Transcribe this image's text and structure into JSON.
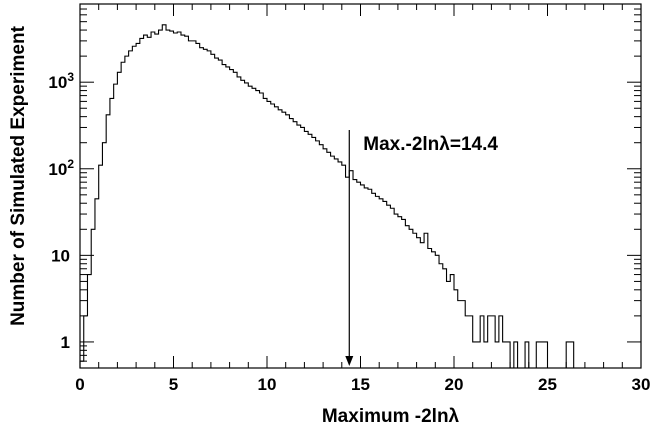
{
  "chart_data": {
    "type": "histogram",
    "title": "",
    "xlabel": "Maximum -2lnλ",
    "ylabel": "Number of Simulated Experiment",
    "xlim": [
      0,
      30
    ],
    "ylim": [
      0.5,
      8000
    ],
    "yscale": "log",
    "bin_width": 0.2,
    "x_ticks": [
      0,
      5,
      10,
      15,
      20,
      25,
      30
    ],
    "x_tick_labels": [
      "0",
      "5",
      "10",
      "15",
      "20",
      "25",
      "30"
    ],
    "y_ticks": [
      1,
      10,
      100,
      1000
    ],
    "y_tick_labels": [
      {
        "base": "1",
        "exp": ""
      },
      {
        "base": "10",
        "exp": ""
      },
      {
        "base": "10",
        "exp": "2"
      },
      {
        "base": "10",
        "exp": "3"
      }
    ],
    "bins": [
      [
        0.0,
        0.6
      ],
      [
        0.2,
        2
      ],
      [
        0.4,
        6
      ],
      [
        0.6,
        20
      ],
      [
        0.8,
        45
      ],
      [
        1.0,
        110
      ],
      [
        1.2,
        200
      ],
      [
        1.4,
        420
      ],
      [
        1.6,
        650
      ],
      [
        1.8,
        950
      ],
      [
        2.0,
        1300
      ],
      [
        2.2,
        1700
      ],
      [
        2.4,
        2000
      ],
      [
        2.6,
        2300
      ],
      [
        2.8,
        2600
      ],
      [
        3.0,
        2800
      ],
      [
        3.2,
        3200
      ],
      [
        3.4,
        3500
      ],
      [
        3.6,
        3300
      ],
      [
        3.8,
        3800
      ],
      [
        4.0,
        3600
      ],
      [
        4.2,
        4000
      ],
      [
        4.4,
        4600
      ],
      [
        4.6,
        4000
      ],
      [
        4.8,
        3900
      ],
      [
        5.0,
        3700
      ],
      [
        5.2,
        3800
      ],
      [
        5.4,
        3500
      ],
      [
        5.6,
        3400
      ],
      [
        5.8,
        3000
      ],
      [
        6.0,
        3000
      ],
      [
        6.2,
        2800
      ],
      [
        6.4,
        2500
      ],
      [
        6.6,
        2400
      ],
      [
        6.8,
        2300
      ],
      [
        7.0,
        2100
      ],
      [
        7.2,
        1900
      ],
      [
        7.4,
        1800
      ],
      [
        7.6,
        1600
      ],
      [
        7.8,
        1500
      ],
      [
        8.0,
        1400
      ],
      [
        8.2,
        1300
      ],
      [
        8.4,
        1150
      ],
      [
        8.6,
        1050
      ],
      [
        8.8,
        980
      ],
      [
        9.0,
        900
      ],
      [
        9.2,
        850
      ],
      [
        9.4,
        800
      ],
      [
        9.6,
        750
      ],
      [
        9.8,
        650
      ],
      [
        10.0,
        600
      ],
      [
        10.2,
        560
      ],
      [
        10.4,
        520
      ],
      [
        10.6,
        480
      ],
      [
        10.8,
        450
      ],
      [
        11.0,
        420
      ],
      [
        11.2,
        380
      ],
      [
        11.4,
        350
      ],
      [
        11.6,
        320
      ],
      [
        11.8,
        300
      ],
      [
        12.0,
        270
      ],
      [
        12.2,
        250
      ],
      [
        12.4,
        230
      ],
      [
        12.6,
        210
      ],
      [
        12.8,
        190
      ],
      [
        13.0,
        170
      ],
      [
        13.2,
        155
      ],
      [
        13.4,
        140
      ],
      [
        13.6,
        130
      ],
      [
        13.8,
        120
      ],
      [
        14.0,
        110
      ],
      [
        14.2,
        80
      ],
      [
        14.4,
        95
      ],
      [
        14.6,
        75
      ],
      [
        14.8,
        70
      ],
      [
        15.0,
        65
      ],
      [
        15.2,
        60
      ],
      [
        15.4,
        58
      ],
      [
        15.6,
        52
      ],
      [
        15.8,
        48
      ],
      [
        16.0,
        45
      ],
      [
        16.2,
        42
      ],
      [
        16.4,
        38
      ],
      [
        16.6,
        35
      ],
      [
        16.8,
        30
      ],
      [
        17.0,
        28
      ],
      [
        17.2,
        26
      ],
      [
        17.4,
        22
      ],
      [
        17.6,
        20
      ],
      [
        17.8,
        18
      ],
      [
        18.0,
        16
      ],
      [
        18.2,
        14
      ],
      [
        18.4,
        18
      ],
      [
        18.6,
        12
      ],
      [
        18.8,
        11
      ],
      [
        19.0,
        10
      ],
      [
        19.2,
        8
      ],
      [
        19.4,
        7
      ],
      [
        19.6,
        5
      ],
      [
        19.8,
        6
      ],
      [
        20.0,
        4
      ],
      [
        20.2,
        3
      ],
      [
        20.4,
        3
      ],
      [
        20.6,
        2
      ],
      [
        20.8,
        2
      ],
      [
        21.0,
        1
      ],
      [
        21.2,
        1
      ],
      [
        21.4,
        2
      ],
      [
        21.6,
        1
      ],
      [
        21.8,
        2
      ],
      [
        22.0,
        2
      ],
      [
        22.2,
        1
      ],
      [
        22.4,
        2
      ],
      [
        22.6,
        1
      ],
      [
        22.8,
        1
      ],
      [
        23.0,
        0
      ],
      [
        23.2,
        1
      ],
      [
        23.4,
        0
      ],
      [
        23.6,
        0
      ],
      [
        23.8,
        1
      ],
      [
        24.0,
        0
      ],
      [
        24.2,
        0
      ],
      [
        24.4,
        1
      ],
      [
        24.6,
        1
      ],
      [
        24.8,
        1
      ],
      [
        25.0,
        0
      ],
      [
        25.2,
        0
      ],
      [
        25.4,
        0
      ],
      [
        25.6,
        0
      ],
      [
        25.8,
        0
      ],
      [
        26.0,
        1
      ],
      [
        26.2,
        1
      ],
      [
        26.4,
        0
      ],
      [
        26.6,
        0
      ],
      [
        26.8,
        0
      ]
    ],
    "annotation": {
      "text": "Max.-2lnλ=14.4",
      "x": 14.4
    },
    "grid": false,
    "colors": {
      "line": "#000000",
      "background": "#ffffff"
    }
  }
}
